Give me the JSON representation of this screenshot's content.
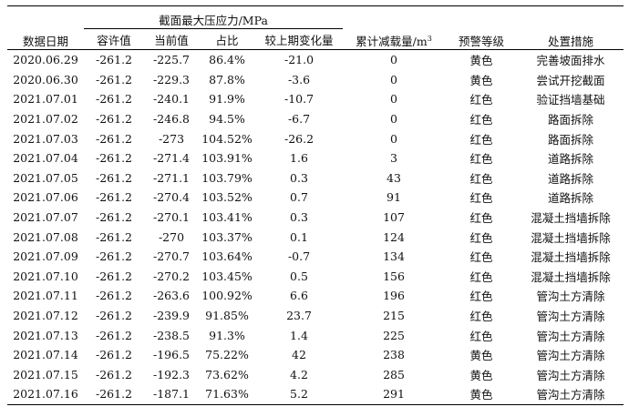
{
  "headers": {
    "date": "数据日期",
    "stress_group": "截面最大压应力/MPa",
    "allowable": "容许值",
    "current": "当前值",
    "ratio": "占比",
    "change": "较上期变化量",
    "settlement": "累计减载量/m",
    "settlement_sup": "3",
    "warning": "预警等级",
    "measure": "处置措施"
  },
  "rows": [
    {
      "date": "2020.06.29",
      "allowable": "-261.2",
      "current": "-225.7",
      "ratio": "86.4%",
      "change": "-21.0",
      "settlement": "0",
      "warning": "黄色",
      "measure": "完善坡面排水"
    },
    {
      "date": "2020.06.30",
      "allowable": "-261.2",
      "current": "-229.3",
      "ratio": "87.8%",
      "change": "-3.6",
      "settlement": "0",
      "warning": "黄色",
      "measure": "尝试开挖截面"
    },
    {
      "date": "2021.07.01",
      "allowable": "-261.2",
      "current": "-240.1",
      "ratio": "91.9%",
      "change": "-10.7",
      "settlement": "0",
      "warning": "红色",
      "measure": "验证挡墙基础"
    },
    {
      "date": "2021.07.02",
      "allowable": "-261.2",
      "current": "-246.8",
      "ratio": "94.5%",
      "change": "-6.7",
      "settlement": "0",
      "warning": "红色",
      "measure": "路面拆除"
    },
    {
      "date": "2021.07.03",
      "allowable": "-261.2",
      "current": "-273",
      "ratio": "104.52%",
      "change": "-26.2",
      "settlement": "0",
      "warning": "红色",
      "measure": "路面拆除"
    },
    {
      "date": "2021.07.04",
      "allowable": "-261.2",
      "current": "-271.4",
      "ratio": "103.91%",
      "change": "1.6",
      "settlement": "3",
      "warning": "红色",
      "measure": "道路拆除"
    },
    {
      "date": "2021.07.05",
      "allowable": "-261.2",
      "current": "-271.1",
      "ratio": "103.79%",
      "change": "0.3",
      "settlement": "43",
      "warning": "红色",
      "measure": "道路拆除"
    },
    {
      "date": "2021.07.06",
      "allowable": "-261.2",
      "current": "-270.4",
      "ratio": "103.52%",
      "change": "0.7",
      "settlement": "91",
      "warning": "红色",
      "measure": "道路拆除"
    },
    {
      "date": "2021.07.07",
      "allowable": "-261.2",
      "current": "-270.1",
      "ratio": "103.41%",
      "change": "0.3",
      "settlement": "107",
      "warning": "红色",
      "measure": "混凝土挡墙拆除"
    },
    {
      "date": "2021.07.08",
      "allowable": "-261.2",
      "current": "-270",
      "ratio": "103.37%",
      "change": "0.1",
      "settlement": "124",
      "warning": "红色",
      "measure": "混凝土挡墙拆除"
    },
    {
      "date": "2021.07.09",
      "allowable": "-261.2",
      "current": "-270.7",
      "ratio": "103.64%",
      "change": "-0.7",
      "settlement": "134",
      "warning": "红色",
      "measure": "混凝土挡墙拆除"
    },
    {
      "date": "2021.07.10",
      "allowable": "-261.2",
      "current": "-270.2",
      "ratio": "103.45%",
      "change": "0.5",
      "settlement": "156",
      "warning": "红色",
      "measure": "混凝土挡墙拆除"
    },
    {
      "date": "2021.07.11",
      "allowable": "-261.2",
      "current": "-263.6",
      "ratio": "100.92%",
      "change": "6.6",
      "settlement": "196",
      "warning": "红色",
      "measure": "管沟土方清除"
    },
    {
      "date": "2021.07.12",
      "allowable": "-261.2",
      "current": "-239.9",
      "ratio": "91.85%",
      "change": "23.7",
      "settlement": "215",
      "warning": "红色",
      "measure": "管沟土方清除"
    },
    {
      "date": "2021.07.13",
      "allowable": "-261.2",
      "current": "-238.5",
      "ratio": "91.3%",
      "change": "1.4",
      "settlement": "225",
      "warning": "红色",
      "measure": "管沟土方清除"
    },
    {
      "date": "2021.07.14",
      "allowable": "-261.2",
      "current": "-196.5",
      "ratio": "75.22%",
      "change": "42",
      "settlement": "238",
      "warning": "黄色",
      "measure": "管沟土方清除"
    },
    {
      "date": "2021.07.15",
      "allowable": "-261.2",
      "current": "-192.3",
      "ratio": "73.62%",
      "change": "4.2",
      "settlement": "285",
      "warning": "黄色",
      "measure": "管沟土方清除"
    },
    {
      "date": "2021.07.16",
      "allowable": "-261.2",
      "current": "-187.1",
      "ratio": "71.63%",
      "change": "5.2",
      "settlement": "291",
      "warning": "黄色",
      "measure": "管沟土方清除"
    }
  ]
}
